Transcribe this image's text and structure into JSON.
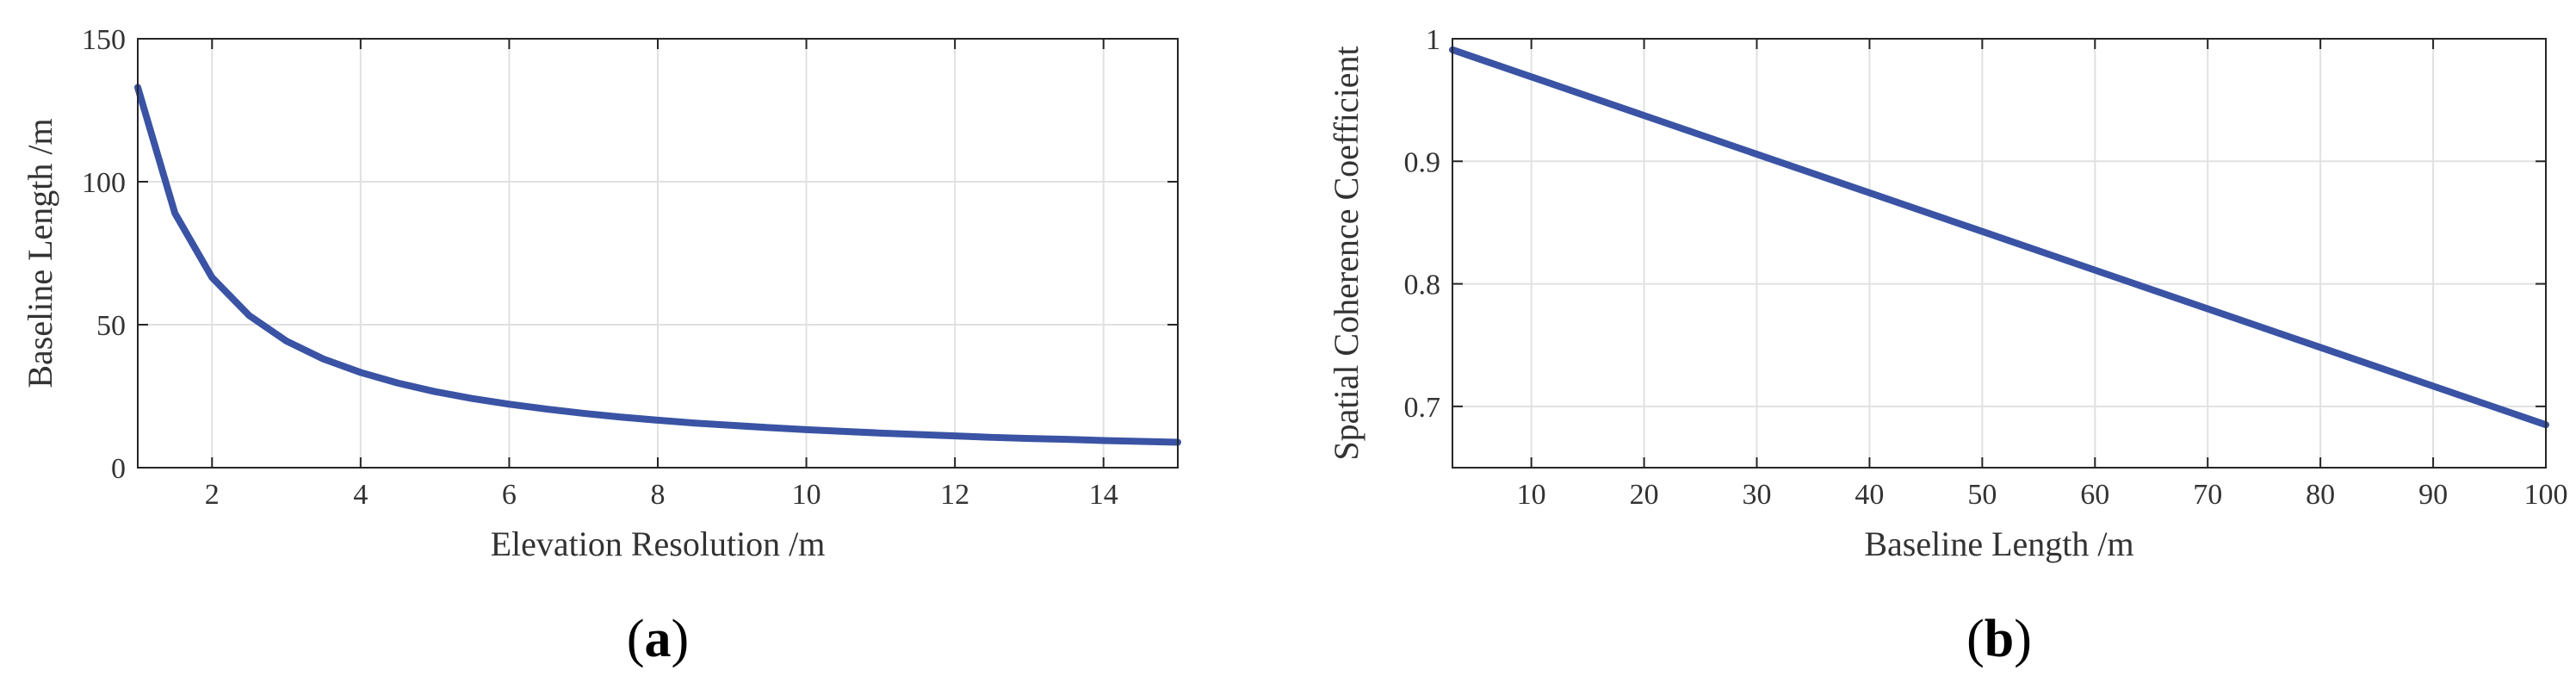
{
  "chart_data": [
    {
      "type": "line",
      "panel_label": "a",
      "xlabel": "Elevation Resolution /m",
      "ylabel": "Baseline Length /m",
      "xlim": [
        1,
        15
      ],
      "ylim": [
        0,
        150
      ],
      "xticks": [
        2,
        4,
        6,
        8,
        10,
        12,
        14
      ],
      "yticks": [
        0,
        50,
        100,
        150
      ],
      "grid": true,
      "color": "#3a53a4",
      "series": [
        {
          "x": [
            1,
            1.5,
            2,
            2.5,
            3,
            3.5,
            4,
            4.5,
            5,
            5.5,
            6,
            6.5,
            7,
            7.5,
            8,
            8.5,
            9,
            9.5,
            10,
            10.5,
            11,
            11.5,
            12,
            12.5,
            13,
            13.5,
            14,
            14.5,
            15
          ],
          "y": [
            133,
            89,
            66.5,
            53.2,
            44.3,
            38,
            33.3,
            29.6,
            26.6,
            24.2,
            22.2,
            20.5,
            19,
            17.7,
            16.6,
            15.6,
            14.8,
            14,
            13.3,
            12.7,
            12.1,
            11.6,
            11.1,
            10.6,
            10.2,
            9.9,
            9.5,
            9.2,
            8.9
          ]
        }
      ]
    },
    {
      "type": "line",
      "panel_label": "b",
      "xlabel": "Baseline Length /m",
      "ylabel": "Spatial Coherence Coefficient",
      "xlim": [
        3,
        100
      ],
      "ylim": [
        0.65,
        1
      ],
      "xticks": [
        10,
        20,
        30,
        40,
        50,
        60,
        70,
        80,
        90,
        100
      ],
      "yticks": [
        0.7,
        0.8,
        0.9,
        1
      ],
      "ytick_labels": [
        "0.7",
        "0.8",
        "0.9",
        "1"
      ],
      "grid": true,
      "color": "#3a53a4",
      "series": [
        {
          "x": [
            3,
            100
          ],
          "y": [
            0.991,
            0.685
          ]
        }
      ]
    }
  ]
}
